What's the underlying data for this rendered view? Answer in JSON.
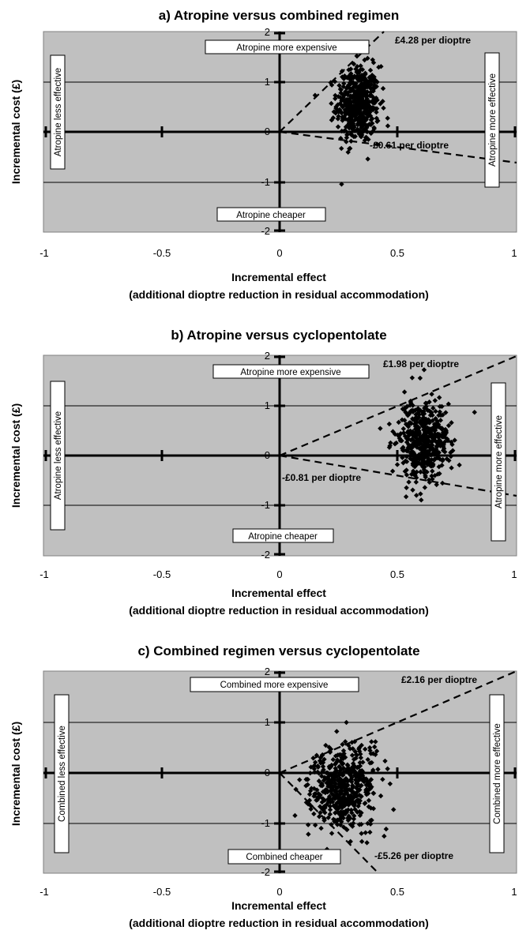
{
  "chart_data": [
    {
      "type": "scatter",
      "title": "a) Atropine versus combined regimen",
      "ylabel": "Incremental cost (£)",
      "xlabel_line1": "Incremental effect",
      "xlabel_line2": "(additional dioptre reduction in residual accommodation)",
      "xlim": [
        -1,
        1
      ],
      "ylim": [
        -2,
        2
      ],
      "xticks": [
        "-1",
        "-0.5",
        "0",
        "0.5",
        "1"
      ],
      "yticks": [
        "2",
        "1",
        "0",
        "-1",
        "-2"
      ],
      "grid": true,
      "quadrant_labels": {
        "top": "Atropine more expensive",
        "bottom": "Atropine cheaper",
        "left": "Atropine less effective",
        "right": "Atropine more effective"
      },
      "threshold_lines": [
        {
          "label": "£4.28 per dioptre",
          "slope": 4.28
        },
        {
          "label": "-£0.61 per dioptre",
          "slope": -0.61
        }
      ],
      "cloud": {
        "mean_x": 0.33,
        "mean_y": 0.55,
        "sd_x": 0.045,
        "sd_y": 0.38,
        "n": 500
      }
    },
    {
      "type": "scatter",
      "title": "b) Atropine versus cyclopentolate",
      "ylabel": "Incremental cost (£)",
      "xlabel_line1": "Incremental effect",
      "xlabel_line2": "(additional dioptre reduction in residual accommodation)",
      "xlim": [
        -1,
        1
      ],
      "ylim": [
        -2,
        2
      ],
      "xticks": [
        "-1",
        "-0.5",
        "0",
        "0.5",
        "1"
      ],
      "yticks": [
        "2",
        "1",
        "0",
        "-1",
        "-2"
      ],
      "grid": true,
      "quadrant_labels": {
        "top": "Atropine more expensive",
        "bottom": "Atropine cheaper",
        "left": "Atropine less effective",
        "right": "Atropine more effective"
      },
      "threshold_lines": [
        {
          "label": "£1.98 per dioptre",
          "slope": 1.98
        },
        {
          "label": "-£0.81 per dioptre",
          "slope": -0.81
        }
      ],
      "cloud": {
        "mean_x": 0.6,
        "mean_y": 0.3,
        "sd_x": 0.055,
        "sd_y": 0.4,
        "n": 500
      }
    },
    {
      "type": "scatter",
      "title": "c) Combined regimen versus cyclopentolate",
      "ylabel": "Incremental cost (£)",
      "xlabel_line1": "Incremental effect",
      "xlabel_line2": "(additional dioptre reduction in residual accommodation)",
      "xlim": [
        -1,
        1
      ],
      "ylim": [
        -2,
        2
      ],
      "xticks": [
        "-1",
        "-0.5",
        "0",
        "0.5",
        "1"
      ],
      "yticks": [
        "2",
        "1",
        "0",
        "-1",
        "-2"
      ],
      "grid": true,
      "quadrant_labels": {
        "top": "Combined more expensive",
        "bottom": "Combined cheaper",
        "left": "Combined less effective",
        "right": "Combined more effective"
      },
      "threshold_lines": [
        {
          "label": "£2.16 per dioptre",
          "slope": 2.16
        },
        {
          "label": "-£5.26 per dioptre",
          "slope": -5.26
        }
      ],
      "cloud": {
        "mean_x": 0.27,
        "mean_y": -0.35,
        "sd_x": 0.07,
        "sd_y": 0.45,
        "n": 500
      }
    }
  ]
}
